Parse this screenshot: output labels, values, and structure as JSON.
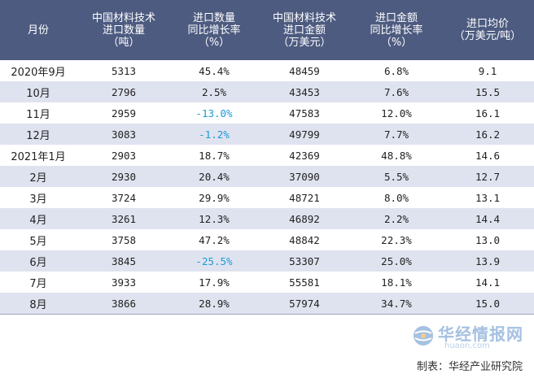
{
  "headers": [
    {
      "lines": [
        "月份"
      ]
    },
    {
      "lines": [
        "中国材料技术",
        "进口数量",
        "（吨）"
      ]
    },
    {
      "lines": [
        "进口数量",
        "同比增长率",
        "（%）"
      ]
    },
    {
      "lines": [
        "中国材料技术",
        "进口金额",
        "（万美元）"
      ]
    },
    {
      "lines": [
        "进口金额",
        "同比增长率",
        "（%）"
      ]
    },
    {
      "lines": [
        "进口均价",
        "（万美元/吨）"
      ]
    }
  ],
  "rows": [
    {
      "month": "2020年9月",
      "qty": "5313",
      "qty_growth": "45.4%",
      "amount": "48459",
      "amount_growth": "6.8%",
      "price": "9.1"
    },
    {
      "month": "10月",
      "qty": "2796",
      "qty_growth": "2.5%",
      "amount": "43453",
      "amount_growth": "7.6%",
      "price": "15.5"
    },
    {
      "month": "11月",
      "qty": "2959",
      "qty_growth": "-13.0%",
      "amount": "47583",
      "amount_growth": "12.0%",
      "price": "16.1"
    },
    {
      "month": "12月",
      "qty": "3083",
      "qty_growth": "-1.2%",
      "amount": "49799",
      "amount_growth": "7.7%",
      "price": "16.2"
    },
    {
      "month": "2021年1月",
      "qty": "2903",
      "qty_growth": "18.7%",
      "amount": "42369",
      "amount_growth": "48.8%",
      "price": "14.6"
    },
    {
      "month": "2月",
      "qty": "2930",
      "qty_growth": "20.4%",
      "amount": "37090",
      "amount_growth": "5.5%",
      "price": "12.7"
    },
    {
      "month": "3月",
      "qty": "3724",
      "qty_growth": "29.9%",
      "amount": "48721",
      "amount_growth": "8.0%",
      "price": "13.1"
    },
    {
      "month": "4月",
      "qty": "3261",
      "qty_growth": "12.3%",
      "amount": "46892",
      "amount_growth": "2.2%",
      "price": "14.4"
    },
    {
      "month": "5月",
      "qty": "3758",
      "qty_growth": "47.2%",
      "amount": "48842",
      "amount_growth": "22.3%",
      "price": "13.0"
    },
    {
      "month": "6月",
      "qty": "3845",
      "qty_growth": "-25.5%",
      "amount": "53307",
      "amount_growth": "25.0%",
      "price": "13.9"
    },
    {
      "month": "7月",
      "qty": "3933",
      "qty_growth": "17.9%",
      "amount": "55581",
      "amount_growth": "18.1%",
      "price": "14.1"
    },
    {
      "month": "8月",
      "qty": "3866",
      "qty_growth": "28.9%",
      "amount": "57974",
      "amount_growth": "34.7%",
      "price": "15.0"
    }
  ],
  "footer": "制表：华经产业研究院",
  "watermark": {
    "name": "华经情报网",
    "url": "huaon.com"
  },
  "colors": {
    "header_bg": "#4d5b80",
    "stripe": "#dfe3ef",
    "negative": "#1a9bd6"
  }
}
